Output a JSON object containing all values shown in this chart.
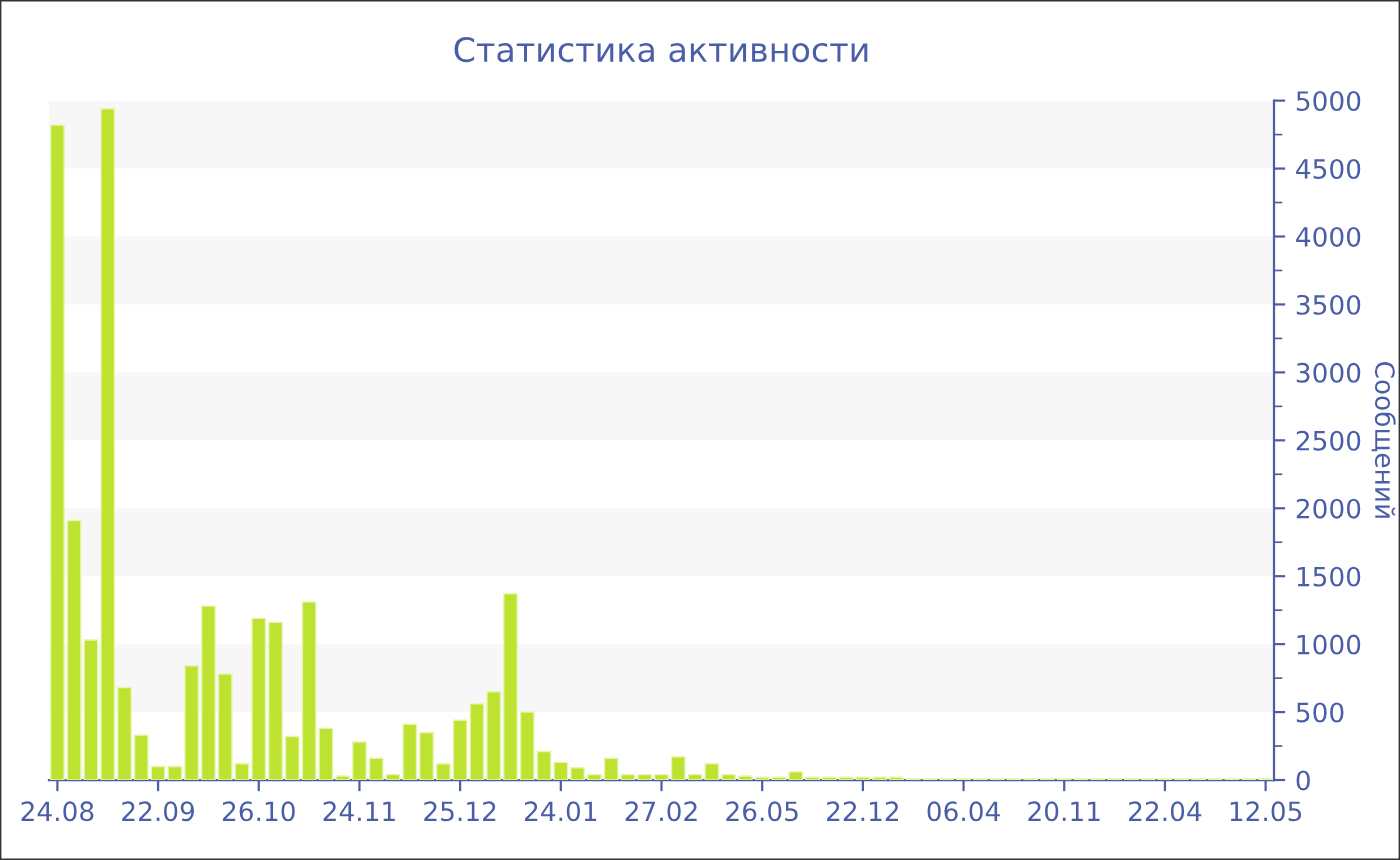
{
  "chart_data": {
    "type": "bar",
    "title": "Статистика активности",
    "ylabel": "Сообщений",
    "categories": [
      "24.08",
      null,
      null,
      null,
      null,
      null,
      "22.09",
      null,
      null,
      null,
      null,
      null,
      "26.10",
      null,
      null,
      null,
      null,
      null,
      "24.11",
      null,
      null,
      null,
      null,
      null,
      "25.12",
      null,
      null,
      null,
      null,
      null,
      "24.01",
      null,
      null,
      null,
      null,
      null,
      "27.02",
      null,
      null,
      null,
      null,
      null,
      "26.05",
      null,
      null,
      null,
      null,
      null,
      "22.12",
      null,
      null,
      null,
      null,
      null,
      "06.04",
      null,
      null,
      null,
      null,
      null,
      "20.11",
      null,
      null,
      null,
      null,
      null,
      "22.04",
      null,
      null,
      null,
      null,
      null,
      "12.05"
    ],
    "values": [
      4820,
      1910,
      1030,
      4940,
      680,
      330,
      100,
      100,
      840,
      1280,
      780,
      120,
      1190,
      1160,
      320,
      1310,
      380,
      30,
      280,
      160,
      40,
      410,
      350,
      120,
      440,
      560,
      650,
      1370,
      500,
      210,
      130,
      90,
      40,
      160,
      40,
      40,
      40,
      170,
      40,
      120,
      40,
      30,
      20,
      20,
      60,
      20,
      20,
      20,
      20,
      20,
      20,
      10,
      10,
      10,
      10,
      10,
      10,
      10,
      10,
      10,
      10,
      10,
      10,
      10,
      10,
      10,
      10,
      10,
      10,
      10,
      10,
      10,
      10
    ],
    "color": "#bde330",
    "ylim": [
      0,
      5000
    ],
    "yticks": [
      0,
      500,
      1000,
      1500,
      2000,
      2500,
      3000,
      3500,
      4000,
      4500,
      5000
    ],
    "bands": [
      {
        "axis": "y",
        "from": 500,
        "to": 1000,
        "color": "#f7f7f7"
      },
      {
        "axis": "y",
        "from": 1500,
        "to": 2000,
        "color": "#f7f7f7"
      },
      {
        "axis": "y",
        "from": 2500,
        "to": 3000,
        "color": "#f7f7f7"
      },
      {
        "axis": "y",
        "from": 3500,
        "to": 4000,
        "color": "#f7f7f7"
      },
      {
        "axis": "y",
        "from": 4500,
        "to": 5000,
        "color": "#f7f7f7"
      }
    ]
  }
}
